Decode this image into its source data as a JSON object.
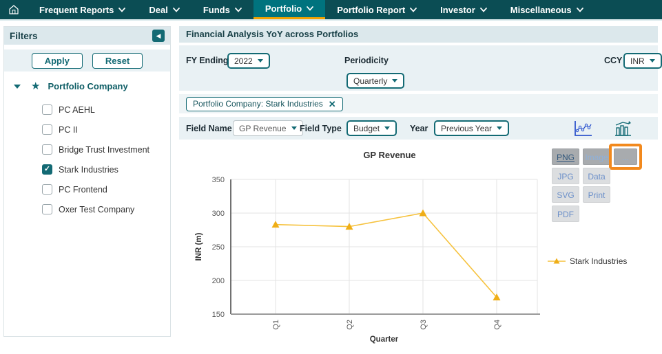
{
  "nav": {
    "items": [
      {
        "label": "Frequent Reports",
        "active": false
      },
      {
        "label": "Deal",
        "active": false
      },
      {
        "label": "Funds",
        "active": false
      },
      {
        "label": "Portfolio",
        "active": true
      },
      {
        "label": "Portfolio Report",
        "active": false
      },
      {
        "label": "Investor",
        "active": false
      },
      {
        "label": "Miscellaneous",
        "active": false
      }
    ]
  },
  "sidebar": {
    "title": "Filters",
    "apply_label": "Apply",
    "reset_label": "Reset",
    "tree_label": "Portfolio Company",
    "companies": [
      {
        "label": "PC AEHL",
        "checked": false
      },
      {
        "label": "PC II",
        "checked": false
      },
      {
        "label": "Bridge Trust Investment",
        "checked": false
      },
      {
        "label": "Stark Industries",
        "checked": true
      },
      {
        "label": "PC Frontend",
        "checked": false
      },
      {
        "label": "Oxer Test Company",
        "checked": false
      }
    ]
  },
  "main": {
    "title": "Financial Analysis YoY across Portfolios",
    "controls": {
      "fy_ending_label": "FY Ending",
      "fy_ending_value": "2022",
      "periodicity_label": "Periodicity",
      "periodicity_value": "Quarterly",
      "ccy_label": "CCY",
      "ccy_value": "INR"
    },
    "chip_text": "Portfolio Company: Stark Industries",
    "field_row": {
      "field_name_label": "Field Name",
      "field_name_value": "GP Revenue",
      "field_type_label": "Field Type",
      "field_type_value": "Budget",
      "year_label": "Year",
      "year_value": "Previous Year"
    },
    "export_menu": {
      "items": [
        {
          "label": "PNG",
          "col": 0,
          "row": 0,
          "state": "active",
          "highlighted": false
        },
        {
          "label": "Image",
          "col": 1,
          "row": 0,
          "state": "hover",
          "highlighted": false
        },
        {
          "label": "...",
          "col": 2,
          "row": 0,
          "state": "hover",
          "highlighted": true
        },
        {
          "label": "JPG",
          "col": 0,
          "row": 1,
          "state": "normal",
          "highlighted": false
        },
        {
          "label": "Data",
          "col": 1,
          "row": 1,
          "state": "normal",
          "highlighted": false
        },
        {
          "label": "SVG",
          "col": 0,
          "row": 2,
          "state": "normal",
          "highlighted": false
        },
        {
          "label": "Print",
          "col": 1,
          "row": 2,
          "state": "normal",
          "highlighted": false
        },
        {
          "label": "PDF",
          "col": 0,
          "row": 3,
          "state": "normal",
          "highlighted": false
        }
      ]
    }
  },
  "chart_data": {
    "type": "line",
    "title": "GP Revenue",
    "categories": [
      "Q1",
      "Q2",
      "Q3",
      "Q4"
    ],
    "series": [
      {
        "name": "Stark Industries",
        "values": [
          283,
          280,
          300,
          175
        ],
        "color": "#f6c23d",
        "marker_color": "#efae17",
        "marker": "triangle"
      }
    ],
    "xlabel": "Quarter",
    "ylabel": "INR (m)",
    "ylim": [
      150,
      350
    ],
    "yticks": [
      150,
      200,
      250,
      300,
      350
    ],
    "grid": true,
    "legend_position": "right"
  },
  "colors": {
    "nav_bg": "#0b4d54",
    "nav_active_bg": "#00737e",
    "nav_active_underline": "#f2a202",
    "accent_teal": "#136a74",
    "panel_header_bg": "#dce8ec",
    "panel_row_bg": "#e9f1f4",
    "series_line": "#f6c23d",
    "series_marker": "#efae17",
    "highlight_orange": "#f2891d"
  }
}
